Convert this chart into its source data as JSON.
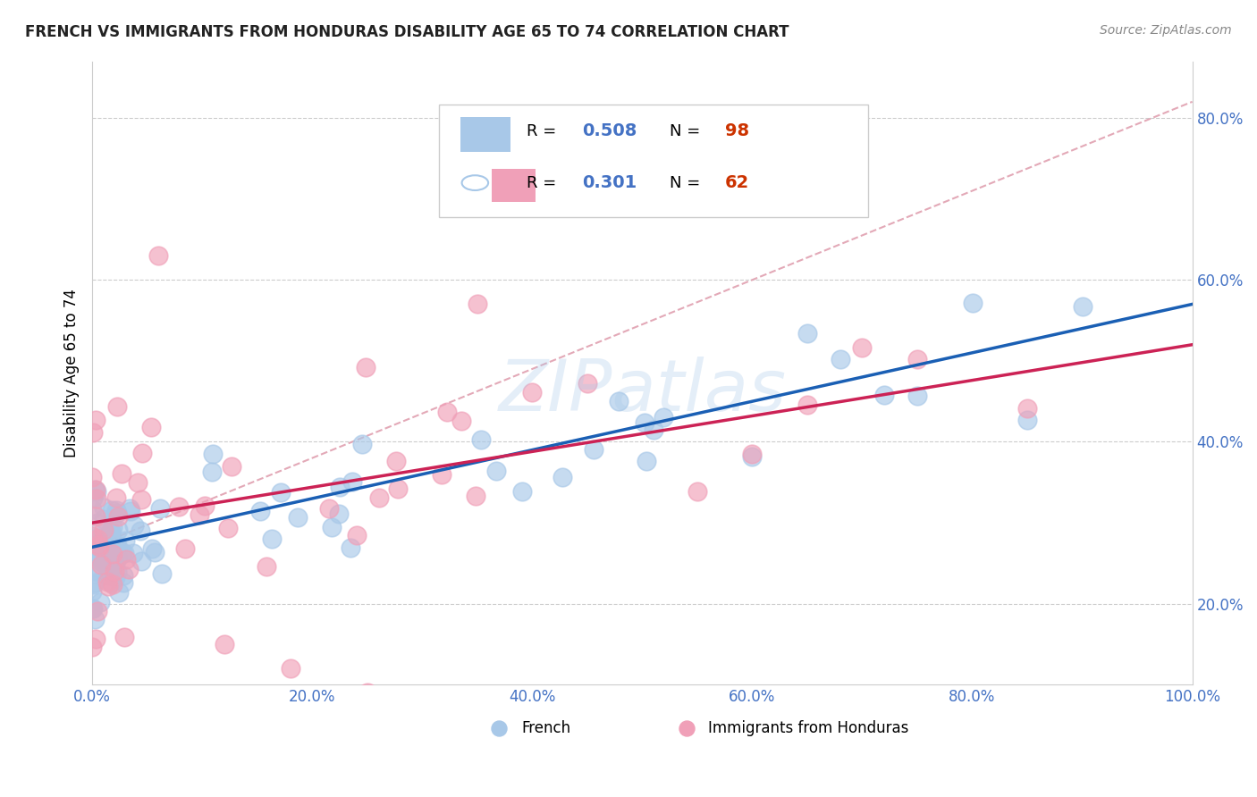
{
  "title": "FRENCH VS IMMIGRANTS FROM HONDURAS DISABILITY AGE 65 TO 74 CORRELATION CHART",
  "source": "Source: ZipAtlas.com",
  "ylabel": "Disability Age 65 to 74",
  "xlim": [
    0.0,
    1.0
  ],
  "ylim": [
    0.1,
    0.87
  ],
  "xtick_labels": [
    "0.0%",
    "20.0%",
    "40.0%",
    "60.0%",
    "80.0%",
    "100.0%"
  ],
  "xtick_vals": [
    0.0,
    0.2,
    0.4,
    0.6,
    0.8,
    1.0
  ],
  "ytick_labels": [
    "20.0%",
    "40.0%",
    "60.0%",
    "80.0%"
  ],
  "ytick_vals": [
    0.2,
    0.4,
    0.6,
    0.8
  ],
  "legend1_label": "French",
  "legend2_label": "Immigrants from Honduras",
  "R1": "0.508",
  "N1": "98",
  "R2": "0.301",
  "N2": "62",
  "blue_color": "#a8c8e8",
  "pink_color": "#f0a0b8",
  "blue_line_color": "#1a5fb4",
  "pink_line_color": "#cc2255",
  "ref_line_color": "#e0a0b0",
  "text_color_blue": "#4472c4",
  "text_color_red": "#cc3300",
  "watermark": "ZIPatlas",
  "watermark_color": "#a8c8e8"
}
